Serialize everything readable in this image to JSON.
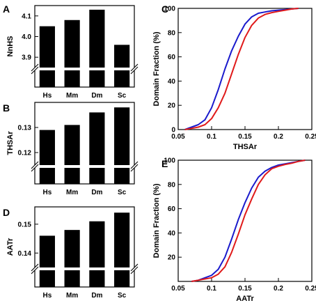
{
  "chart_data": [
    {
      "panel": "A",
      "type": "bar",
      "ylabel": "NnHS",
      "categories": [
        "Hs",
        "Mm",
        "Dm",
        "Sc"
      ],
      "values": [
        4.05,
        4.08,
        4.13,
        3.96
      ],
      "ylim": [
        3.85,
        4.15
      ],
      "yticks": [
        "3.9",
        "4.0",
        "4.1"
      ],
      "axis_break": true
    },
    {
      "panel": "B",
      "type": "bar",
      "ylabel": "THSAr",
      "categories": [
        "Hs",
        "Mm",
        "Dm",
        "Sc"
      ],
      "values": [
        0.129,
        0.131,
        0.136,
        0.138
      ],
      "ylim": [
        0.115,
        0.14
      ],
      "yticks": [
        "0.12",
        "0.13"
      ],
      "axis_break": true
    },
    {
      "panel": "C",
      "type": "line",
      "xlabel": "THSAr",
      "ylabel": "Domain Fraction (%)",
      "xlim": [
        0.05,
        0.25
      ],
      "ylim": [
        0,
        100
      ],
      "xticks": [
        "0.05",
        "0.1",
        "0.15",
        "0.2",
        "0.25"
      ],
      "yticks": [
        "0",
        "20",
        "40",
        "60",
        "80",
        "100"
      ],
      "series": [
        {
          "color": "#1a1acc",
          "x": [
            0.06,
            0.07,
            0.08,
            0.09,
            0.1,
            0.11,
            0.12,
            0.13,
            0.14,
            0.15,
            0.16,
            0.17,
            0.18,
            0.19,
            0.2,
            0.21,
            0.22,
            0.23
          ],
          "y": [
            0,
            2,
            4,
            8,
            18,
            33,
            50,
            65,
            77,
            87,
            93,
            96,
            97,
            98,
            98.5,
            99,
            99.5,
            100
          ]
        },
        {
          "color": "#e01a1a",
          "x": [
            0.06,
            0.07,
            0.08,
            0.09,
            0.1,
            0.11,
            0.12,
            0.13,
            0.14,
            0.15,
            0.16,
            0.17,
            0.18,
            0.19,
            0.2,
            0.21,
            0.22,
            0.23
          ],
          "y": [
            0,
            1,
            2,
            4,
            9,
            18,
            30,
            46,
            62,
            76,
            86,
            92,
            95,
            96.5,
            97.5,
            98.5,
            99.5,
            100
          ]
        }
      ]
    },
    {
      "panel": "D",
      "type": "bar",
      "ylabel": "AATr",
      "categories": [
        "Hs",
        "Mm",
        "Dm",
        "Sc"
      ],
      "values": [
        0.146,
        0.148,
        0.151,
        0.154
      ],
      "ylim": [
        0.135,
        0.156
      ],
      "yticks": [
        "0.14",
        "0.15"
      ],
      "axis_break": true
    },
    {
      "panel": "E",
      "type": "line",
      "xlabel": "AATr",
      "ylabel": "Domain Fraction (%)",
      "xlim": [
        0.05,
        0.25
      ],
      "ylim": [
        0,
        100
      ],
      "xticks": [
        "0.05",
        "0.1",
        "0.15",
        "0.2",
        "0.25"
      ],
      "yticks": [
        "20",
        "40",
        "60",
        "80",
        "100"
      ],
      "series": [
        {
          "color": "#1a1acc",
          "x": [
            0.07,
            0.08,
            0.09,
            0.1,
            0.11,
            0.12,
            0.13,
            0.14,
            0.15,
            0.16,
            0.17,
            0.18,
            0.19,
            0.2,
            0.21,
            0.22,
            0.23,
            0.24
          ],
          "y": [
            0,
            1,
            3,
            5,
            10,
            20,
            35,
            51,
            65,
            77,
            86,
            91,
            94,
            96,
            97,
            98,
            99,
            100
          ]
        },
        {
          "color": "#e01a1a",
          "x": [
            0.07,
            0.08,
            0.09,
            0.1,
            0.11,
            0.12,
            0.13,
            0.14,
            0.15,
            0.16,
            0.17,
            0.18,
            0.19,
            0.2,
            0.21,
            0.22,
            0.23,
            0.24
          ],
          "y": [
            0,
            1,
            2,
            3,
            6,
            12,
            24,
            39,
            55,
            68,
            80,
            88,
            93,
            95,
            96.5,
            97.5,
            99,
            100
          ]
        }
      ]
    }
  ]
}
